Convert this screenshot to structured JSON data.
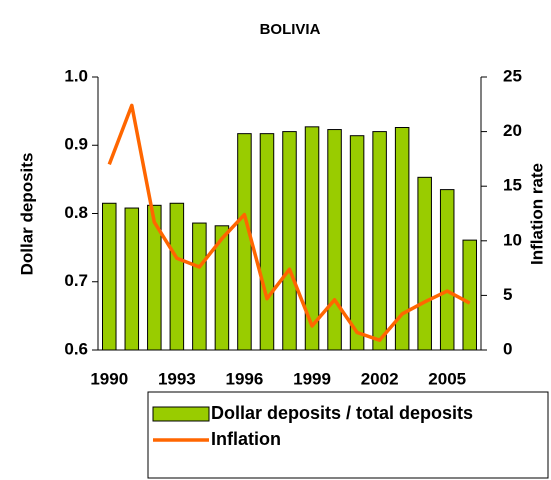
{
  "chart_data": {
    "type": "bar",
    "title": "BOLIVIA",
    "y_label": "Dollar deposits",
    "y2_label": "Inflation rate",
    "categories": [
      "1990",
      null,
      null,
      "1993",
      null,
      null,
      "1996",
      null,
      null,
      "1999",
      null,
      null,
      "2002",
      null,
      null,
      "2005",
      null
    ],
    "series": [
      {
        "name": "Dollar deposits / total deposits",
        "type": "bar",
        "color": "#99cc00",
        "values": [
          0.815,
          0.808,
          0.812,
          0.815,
          0.786,
          0.782,
          0.917,
          0.917,
          0.92,
          0.927,
          0.923,
          0.914,
          0.92,
          0.926,
          0.853,
          0.835,
          0.761
        ]
      },
      {
        "name": "Inflation",
        "type": "line",
        "axis": "y2",
        "color": "#ff6600",
        "values": [
          17.0,
          22.4,
          11.7,
          8.4,
          7.6,
          10.2,
          12.4,
          4.7,
          7.4,
          2.2,
          4.6,
          1.6,
          0.9,
          3.3,
          4.4,
          5.4,
          4.3
        ]
      }
    ],
    "ylim": [
      0.6,
      1.0
    ],
    "yticks": [
      0.6,
      0.7,
      0.8,
      0.9,
      {
        "value": 1.0,
        "label": "1.0"
      }
    ],
    "y2lim": [
      0,
      25
    ],
    "y2ticks": [
      0,
      5,
      10,
      15,
      20,
      25
    ]
  }
}
